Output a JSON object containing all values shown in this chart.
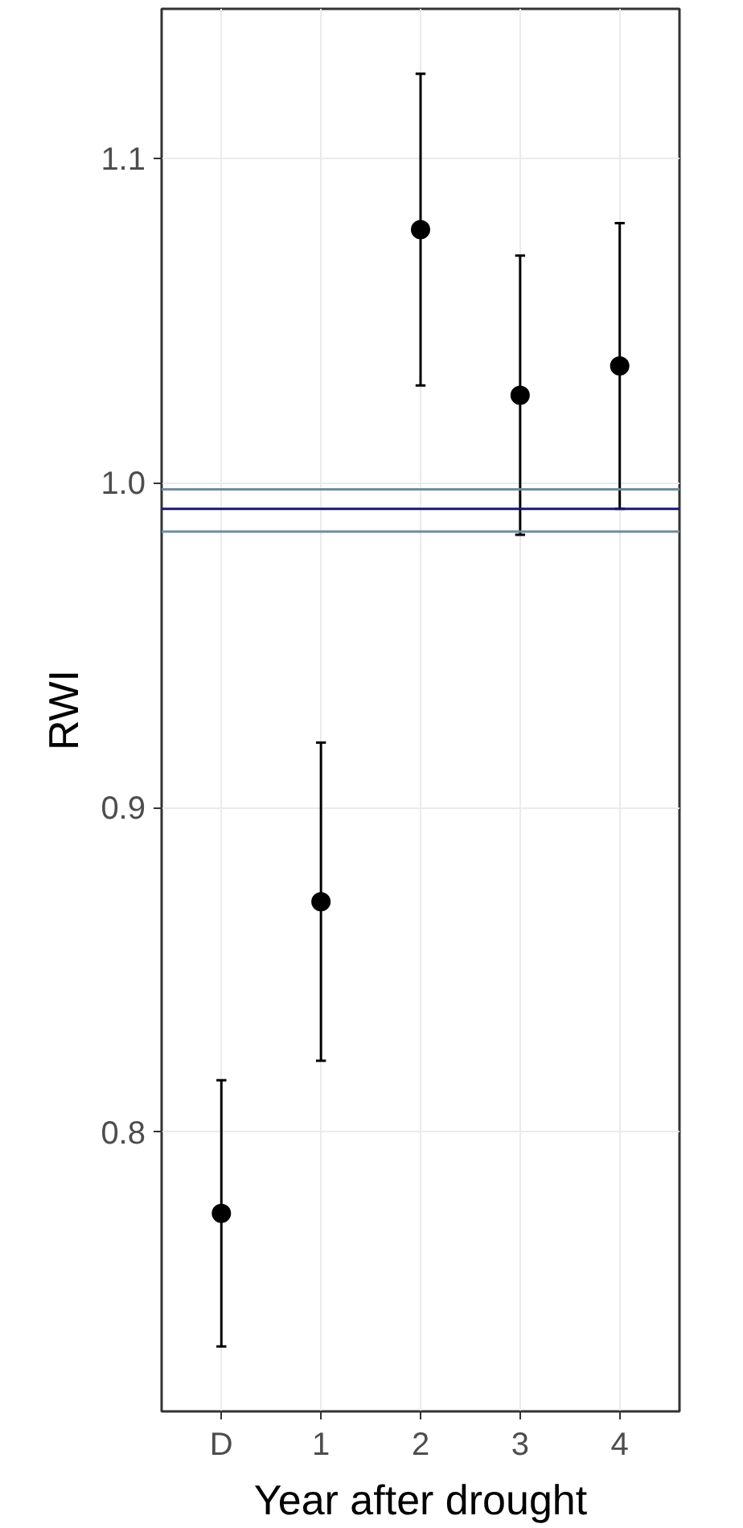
{
  "chart_data": {
    "type": "scatter",
    "xlabel": "Year after drought",
    "ylabel": "RWI",
    "categories": [
      "D",
      "1",
      "2",
      "3",
      "4"
    ],
    "series": [
      {
        "color": "#000000",
        "values": [
          0.775,
          0.871,
          1.078,
          1.027,
          1.036
        ],
        "errors": [
          0.041,
          0.049,
          0.048,
          0.043,
          0.044
        ]
      }
    ],
    "ylim": [
      0.714,
      1.146
    ],
    "yticks": [
      0.8,
      0.9,
      {
        "value": 1.0,
        "label": "1.0"
      },
      1.1
    ],
    "ref_lines": [
      {
        "axis": "y",
        "value": 0.992,
        "color": "#191970"
      },
      {
        "axis": "y",
        "value": 0.998,
        "color": "#6e8ca0"
      },
      {
        "axis": "y",
        "value": 0.985,
        "color": "#6e8ca0"
      }
    ],
    "grid": true,
    "marker": "circle"
  }
}
